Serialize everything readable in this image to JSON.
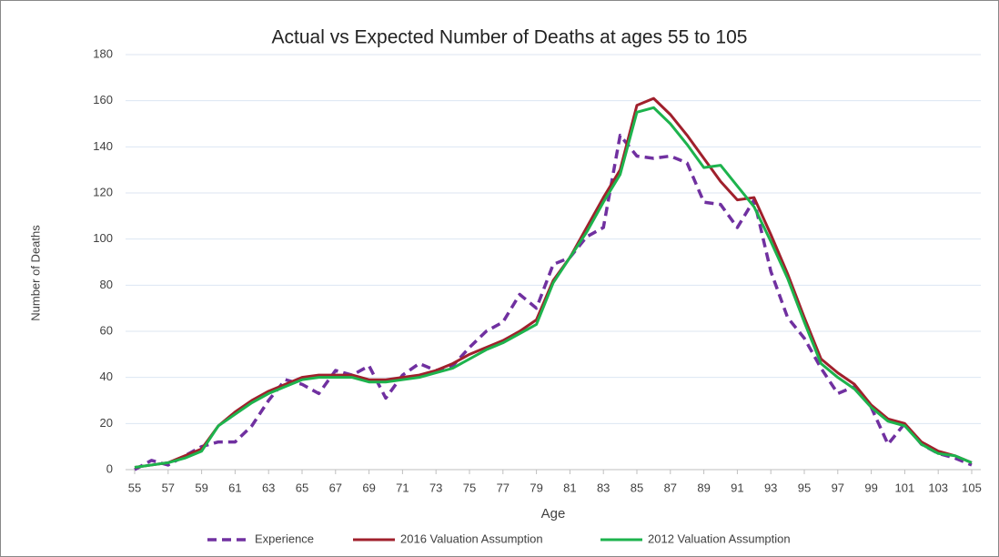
{
  "chart_data": {
    "type": "line",
    "title": "Actual vs Expected Number of Deaths at ages 55 to 105",
    "x_label": "Age",
    "y_label": "Number of Deaths",
    "x": [
      55,
      56,
      57,
      58,
      59,
      60,
      61,
      62,
      63,
      64,
      65,
      66,
      67,
      68,
      69,
      70,
      71,
      72,
      73,
      74,
      75,
      76,
      77,
      78,
      79,
      80,
      81,
      82,
      83,
      84,
      85,
      86,
      87,
      88,
      89,
      90,
      91,
      92,
      93,
      94,
      95,
      96,
      97,
      98,
      99,
      100,
      101,
      102,
      103,
      104,
      105
    ],
    "xlim": [
      55,
      105
    ],
    "xticks": [
      55,
      57,
      59,
      61,
      63,
      65,
      67,
      69,
      71,
      73,
      75,
      77,
      79,
      81,
      83,
      85,
      87,
      89,
      91,
      93,
      95,
      97,
      99,
      101,
      103,
      105
    ],
    "ylim": [
      0,
      180
    ],
    "yticks": [
      0,
      20,
      40,
      60,
      80,
      100,
      120,
      140,
      160,
      180
    ],
    "grid": true,
    "legend": "bottom",
    "series": [
      {
        "name": "Experience",
        "color": "#7030a0",
        "dashed": true,
        "values": [
          0,
          4,
          2,
          6,
          10,
          12,
          12,
          19,
          30,
          39,
          37,
          33,
          43,
          41,
          45,
          31,
          41,
          46,
          43,
          45,
          53,
          60,
          64,
          76,
          70,
          89,
          92,
          101,
          105,
          145,
          136,
          135,
          136,
          133,
          116,
          115,
          105,
          117,
          86,
          66,
          57,
          44,
          33,
          36,
          27,
          11,
          20,
          11,
          7,
          5,
          2
        ]
      },
      {
        "name": "2016 Valuation Assumption",
        "color": "#a0202c",
        "dashed": false,
        "values": [
          1,
          2,
          3,
          6,
          9,
          19,
          25,
          30,
          34,
          37,
          40,
          41,
          41,
          41,
          39,
          39,
          40,
          41,
          43,
          46,
          50,
          53,
          56,
          60,
          65,
          82,
          92,
          105,
          118,
          130,
          158,
          161,
          154,
          145,
          135,
          125,
          117,
          118,
          102,
          85,
          66,
          48,
          42,
          37,
          28,
          22,
          20,
          12,
          8,
          6,
          3
        ]
      },
      {
        "name": "2012 Valuation Assumption",
        "color": "#1db34d",
        "dashed": false,
        "values": [
          1,
          2,
          3,
          5,
          8,
          19,
          24,
          29,
          33,
          36,
          39,
          40,
          40,
          40,
          38,
          38,
          39,
          40,
          42,
          44,
          48,
          52,
          55,
          59,
          63,
          81,
          92,
          103,
          116,
          128,
          155,
          157,
          150,
          141,
          131,
          132,
          123,
          114,
          99,
          83,
          64,
          46,
          40,
          35,
          27,
          21,
          19,
          11,
          7,
          6,
          3
        ]
      }
    ]
  }
}
